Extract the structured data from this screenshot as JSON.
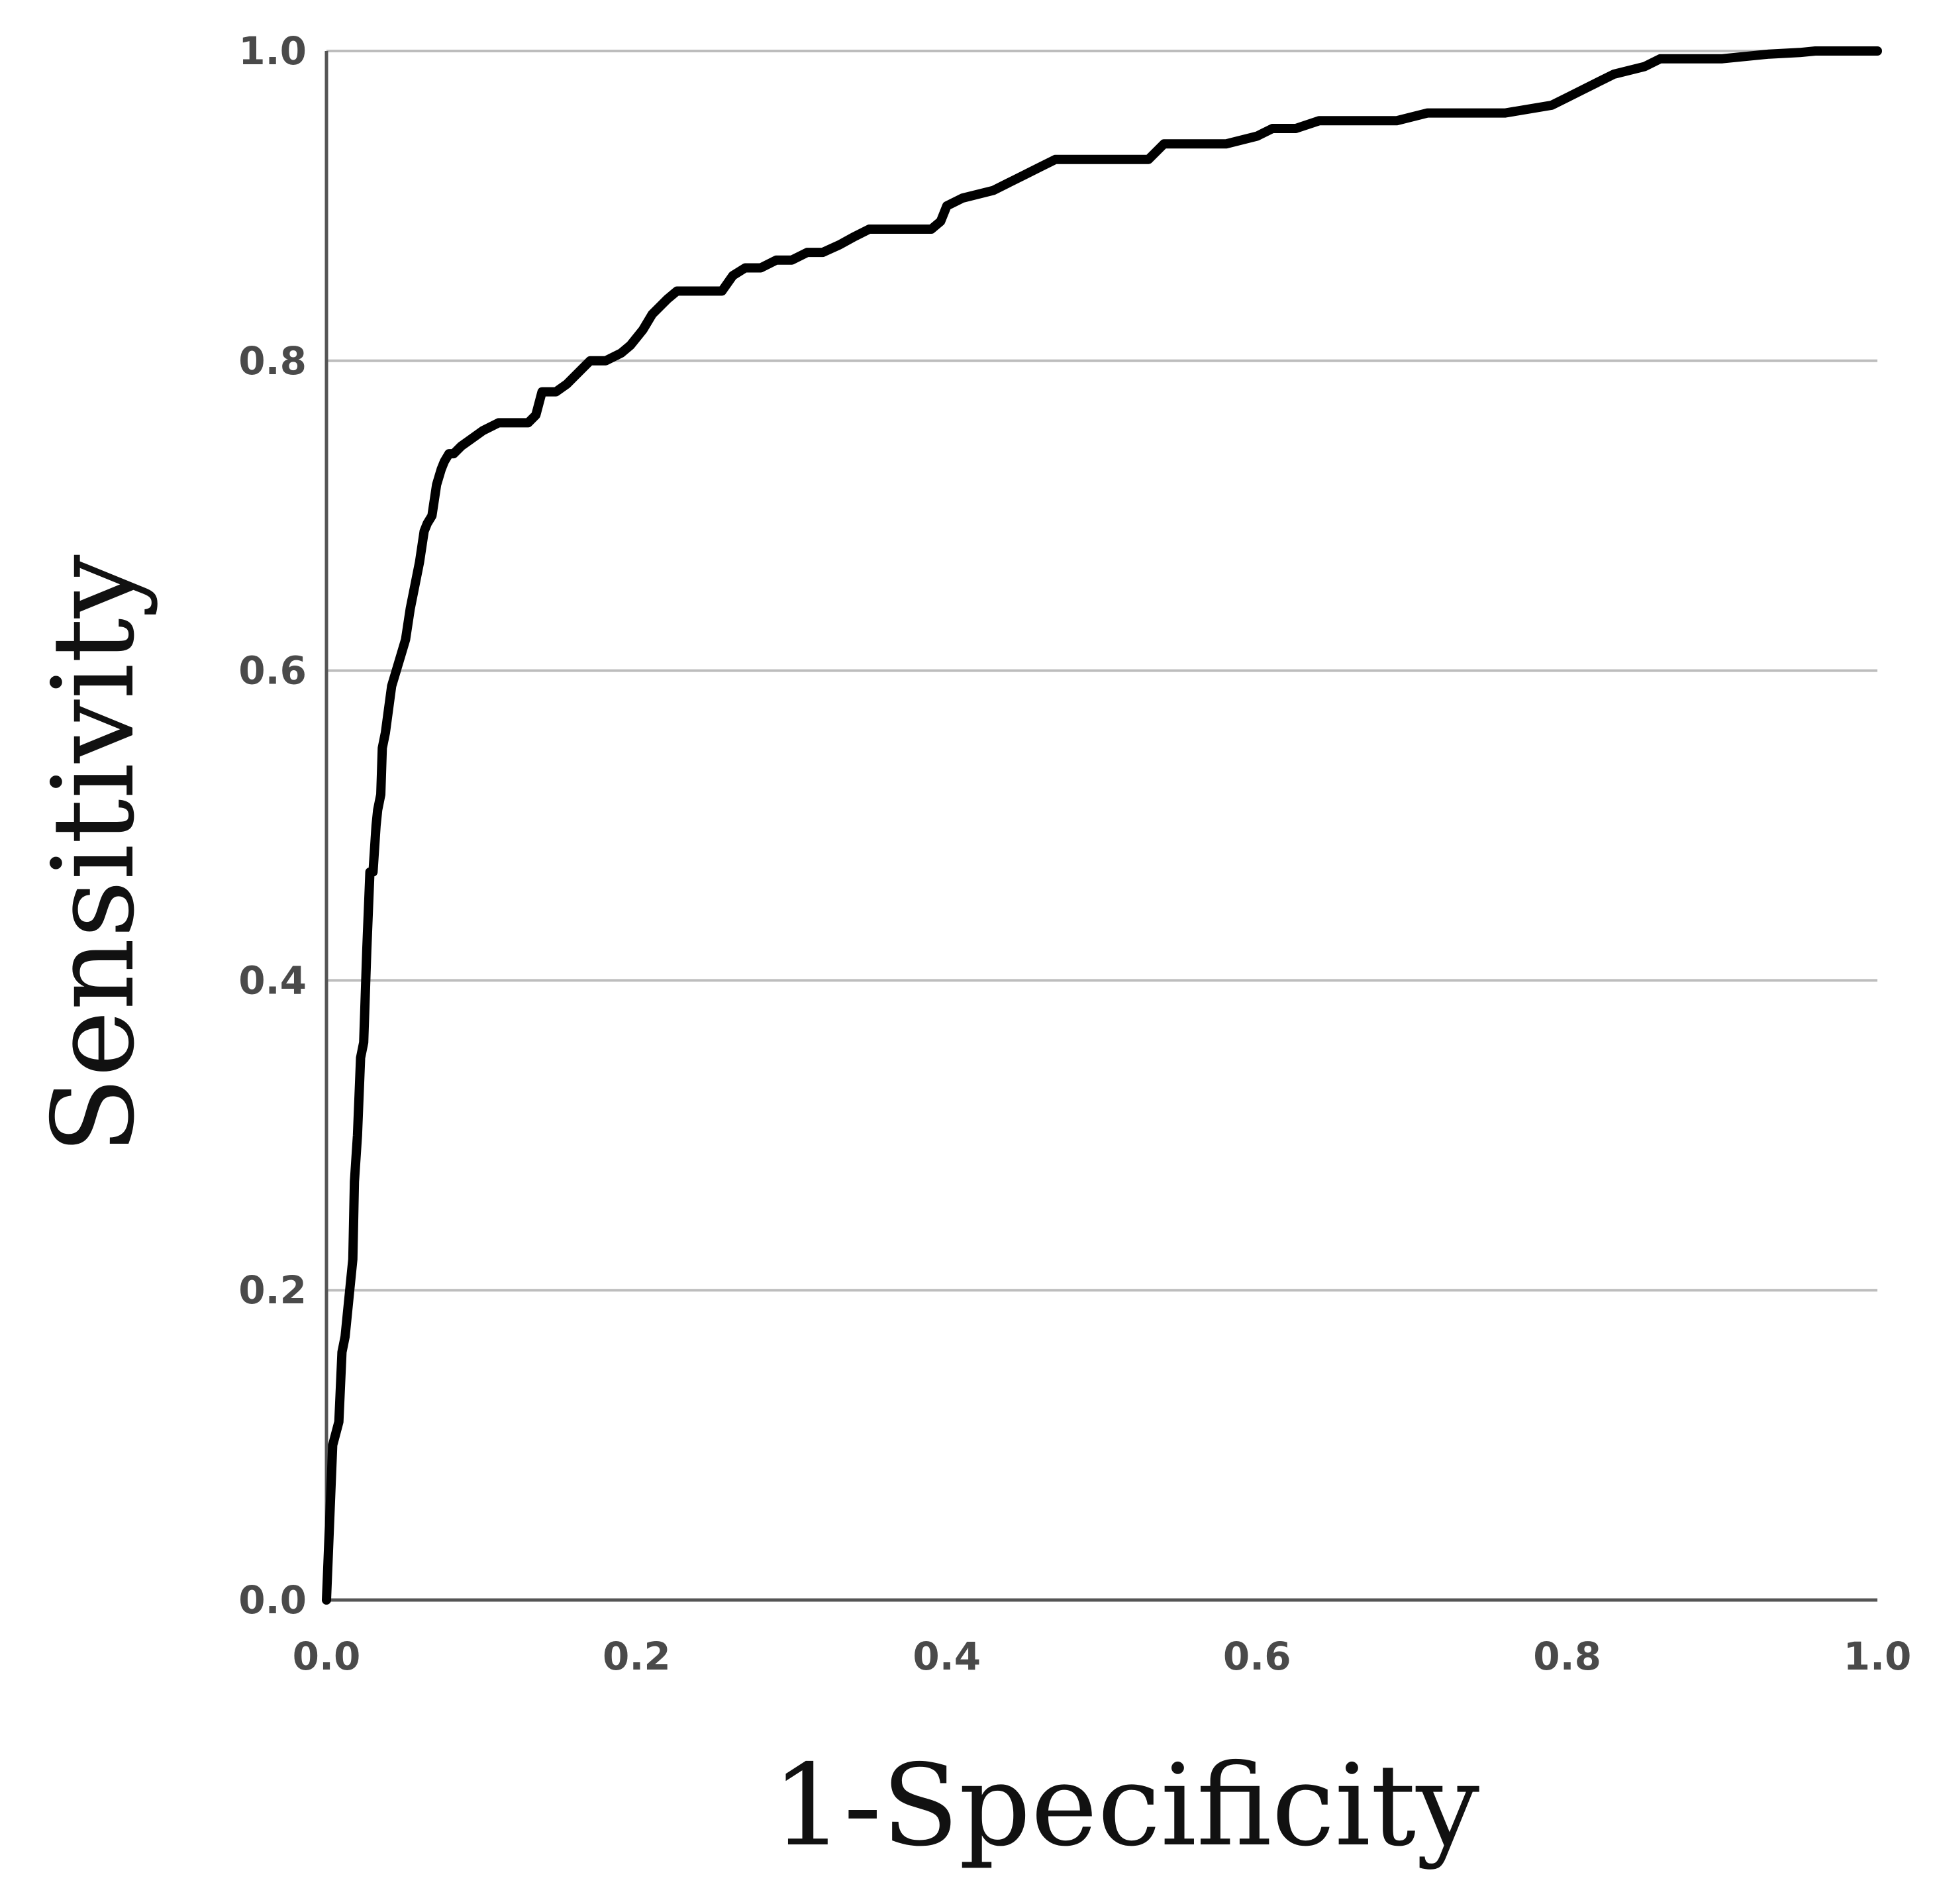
{
  "chart_data": {
    "type": "line",
    "title": "",
    "xlabel": "1-Specificity",
    "ylabel": "Sensitivity",
    "xlim": [
      0.0,
      1.0
    ],
    "ylim": [
      0.0,
      1.0
    ],
    "x_ticks": [
      "0.0",
      "0.2",
      "0.4",
      "0.6",
      "0.8",
      "1.0"
    ],
    "y_ticks": [
      "0.0",
      "0.2",
      "0.4",
      "0.6",
      "0.8",
      "1.0"
    ],
    "grid": "horizontal",
    "colors": {
      "curve": "#000000",
      "grid": "#bdbdbd",
      "axis": "#555555"
    },
    "series": [
      {
        "x": [
          0.0,
          0.002,
          0.004,
          0.008,
          0.01,
          0.012,
          0.015,
          0.017,
          0.018,
          0.02,
          0.022,
          0.024,
          0.026,
          0.028,
          0.03,
          0.032,
          0.033,
          0.035,
          0.036,
          0.038,
          0.04,
          0.042,
          0.045,
          0.048,
          0.051,
          0.054,
          0.057,
          0.06,
          0.063,
          0.065,
          0.068,
          0.071,
          0.074,
          0.076,
          0.079,
          0.082,
          0.087,
          0.094,
          0.101,
          0.111,
          0.12,
          0.13,
          0.135,
          0.139,
          0.148,
          0.155,
          0.16,
          0.17,
          0.18,
          0.19,
          0.196,
          0.204,
          0.21,
          0.22,
          0.226,
          0.232,
          0.24,
          0.255,
          0.262,
          0.27,
          0.28,
          0.29,
          0.3,
          0.31,
          0.32,
          0.331,
          0.34,
          0.35,
          0.36,
          0.375,
          0.39,
          0.396,
          0.4,
          0.41,
          0.43,
          0.44,
          0.45,
          0.46,
          0.47,
          0.49,
          0.51,
          0.53,
          0.54,
          0.56,
          0.58,
          0.6,
          0.61,
          0.625,
          0.64,
          0.66,
          0.69,
          0.71,
          0.73,
          0.76,
          0.79,
          0.8,
          0.81,
          0.82,
          0.83,
          0.85,
          0.86,
          0.87,
          0.9,
          0.93,
          0.95,
          0.96,
          0.98,
          1.0
        ],
        "y": [
          0.0,
          0.05,
          0.1,
          0.115,
          0.16,
          0.17,
          0.2,
          0.22,
          0.27,
          0.3,
          0.35,
          0.36,
          0.42,
          0.47,
          0.47,
          0.5,
          0.51,
          0.52,
          0.55,
          0.56,
          0.575,
          0.59,
          0.6,
          0.61,
          0.62,
          0.64,
          0.655,
          0.67,
          0.69,
          0.695,
          0.7,
          0.72,
          0.73,
          0.735,
          0.74,
          0.74,
          0.745,
          0.75,
          0.755,
          0.76,
          0.76,
          0.76,
          0.765,
          0.78,
          0.78,
          0.785,
          0.79,
          0.8,
          0.8,
          0.805,
          0.81,
          0.82,
          0.83,
          0.84,
          0.845,
          0.845,
          0.845,
          0.845,
          0.855,
          0.86,
          0.86,
          0.865,
          0.865,
          0.87,
          0.87,
          0.875,
          0.88,
          0.885,
          0.885,
          0.885,
          0.885,
          0.89,
          0.9,
          0.905,
          0.91,
          0.915,
          0.92,
          0.925,
          0.93,
          0.93,
          0.93,
          0.93,
          0.94,
          0.94,
          0.94,
          0.945,
          0.95,
          0.95,
          0.955,
          0.955,
          0.955,
          0.96,
          0.96,
          0.96,
          0.965,
          0.97,
          0.975,
          0.98,
          0.985,
          0.99,
          0.995,
          0.995,
          0.995,
          0.998,
          0.999,
          1.0,
          1.0,
          1.0
        ]
      }
    ]
  }
}
